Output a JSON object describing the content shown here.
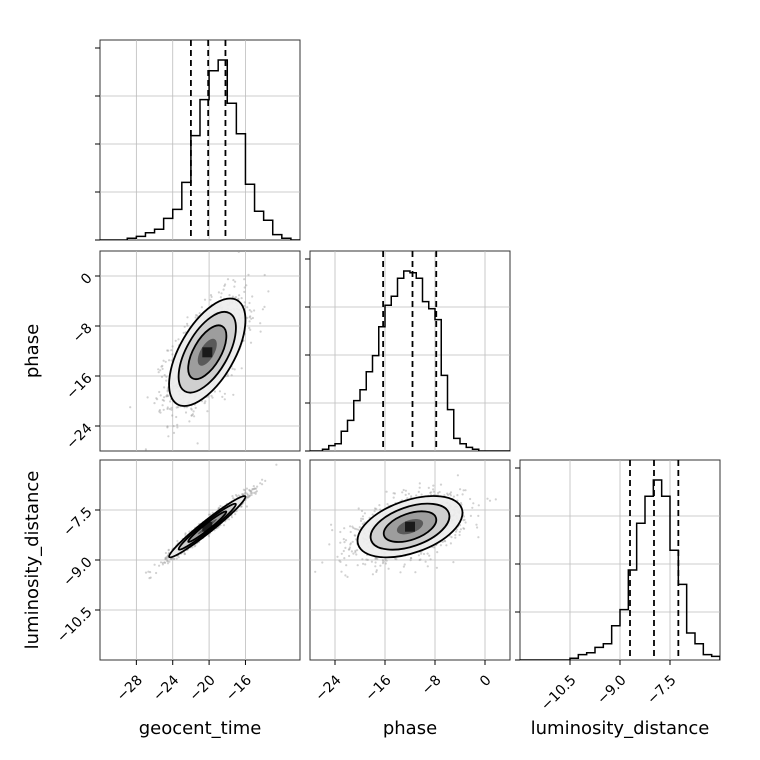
{
  "chart_data": {
    "type": "corner",
    "parameters": [
      "geocent_time",
      "phase",
      "luminosity_distance"
    ],
    "axis_labels": {
      "geocent_time": "geocent_time",
      "phase": "phase",
      "luminosity_distance": "luminosity_distance"
    },
    "ranges": {
      "geocent_time": [
        -32,
        -10
      ],
      "phase": [
        -28,
        4
      ],
      "luminosity_distance": [
        -12,
        -6
      ]
    },
    "ticks": {
      "geocent_time": [
        -28,
        -24,
        -20,
        -16
      ],
      "phase": [
        -24,
        -16,
        -8,
        0
      ],
      "luminosity_distance": [
        -10.5,
        -9.0,
        -7.5
      ]
    },
    "tick_labels": {
      "geocent_time": [
        "−28",
        "−24",
        "−20",
        "−16"
      ],
      "phase": [
        "−24",
        "−16",
        "−8",
        "0"
      ],
      "luminosity_distance": [
        "−10.5",
        "−9.0",
        "−7.5"
      ]
    },
    "quantiles": {
      "geocent_time": [
        -22.0,
        -20.1,
        -18.2
      ],
      "phase": [
        -16.3,
        -11.6,
        -7.8
      ],
      "luminosity_distance": [
        -8.7,
        -7.98,
        -7.25
      ]
    },
    "histograms": {
      "geocent_time": {
        "edges": [
          -32,
          -31,
          -30,
          -29,
          -28,
          -27,
          -26,
          -25,
          -24,
          -23,
          -22,
          -21,
          -20,
          -19,
          -18,
          -17,
          -16,
          -15,
          -14,
          -13,
          -12,
          -11,
          -10
        ],
        "counts": [
          0.0,
          0.0,
          0.0,
          0.01,
          0.02,
          0.04,
          0.06,
          0.12,
          0.17,
          0.32,
          0.58,
          0.78,
          0.94,
          1.0,
          0.76,
          0.59,
          0.31,
          0.16,
          0.11,
          0.03,
          0.01,
          0.0
        ]
      },
      "phase": {
        "edges": [
          -28,
          -27,
          -26,
          -25,
          -24,
          -23,
          -22,
          -21,
          -20,
          -19,
          -18,
          -17,
          -16,
          -15,
          -14,
          -13,
          -12,
          -11,
          -10,
          -9,
          -8,
          -7,
          -6,
          -5,
          -4,
          -3,
          -2,
          -1,
          0,
          1,
          2,
          3,
          4
        ],
        "counts": [
          0.0,
          0.0,
          0.01,
          0.03,
          0.04,
          0.11,
          0.17,
          0.28,
          0.34,
          0.44,
          0.53,
          0.69,
          0.81,
          0.86,
          0.96,
          1.0,
          0.99,
          0.96,
          0.83,
          0.79,
          0.73,
          0.42,
          0.23,
          0.07,
          0.04,
          0.02,
          0.01,
          0.0,
          0.0,
          0.0,
          0.0,
          0.0
        ]
      },
      "luminosity_distance": {
        "edges": [
          -12.0,
          -11.75,
          -11.5,
          -11.25,
          -11.0,
          -10.75,
          -10.5,
          -10.25,
          -10.0,
          -9.75,
          -9.5,
          -9.25,
          -9.0,
          -8.75,
          -8.5,
          -8.25,
          -8.0,
          -7.75,
          -7.5,
          -7.25,
          -7.0,
          -6.75,
          -6.5,
          -6.25,
          -6.0
        ],
        "counts": [
          0.0,
          0.0,
          0.0,
          0.0,
          0.0,
          0.0,
          0.01,
          0.03,
          0.04,
          0.07,
          0.09,
          0.19,
          0.28,
          0.5,
          0.76,
          0.91,
          1.0,
          0.91,
          0.61,
          0.42,
          0.15,
          0.09,
          0.03,
          0.02
        ]
      }
    },
    "joint": [
      {
        "x": "geocent_time",
        "y": "phase",
        "mean": [
          -20.2,
          -12.2
        ],
        "sd": [
          2.1,
          4.3
        ],
        "corr": 0.6,
        "point_range": {
          "x": [
            -32,
            -10
          ],
          "y": [
            -28,
            4
          ]
        }
      },
      {
        "x": "geocent_time",
        "y": "luminosity_distance",
        "mean": [
          -20.2,
          -8.0
        ],
        "sd": [
          2.1,
          0.46
        ],
        "corr": 0.97,
        "point_range": {
          "x": [
            -32,
            -10
          ],
          "y": [
            -12,
            -6
          ]
        }
      },
      {
        "x": "phase",
        "y": "luminosity_distance",
        "mean": [
          -12.0,
          -8.0
        ],
        "sd": [
          4.2,
          0.46
        ],
        "corr": 0.45,
        "point_range": {
          "x": [
            -28,
            4
          ],
          "y": [
            -12,
            -6
          ]
        }
      }
    ],
    "contour_levels_sigma": [
      0.5,
      1.0,
      1.5,
      2.0
    ],
    "density_fill_colors": [
      "#ffffff",
      "#eeeeee",
      "#cccccc",
      "#999999",
      "#555555",
      "#1a1a1a"
    ],
    "grid": true
  }
}
